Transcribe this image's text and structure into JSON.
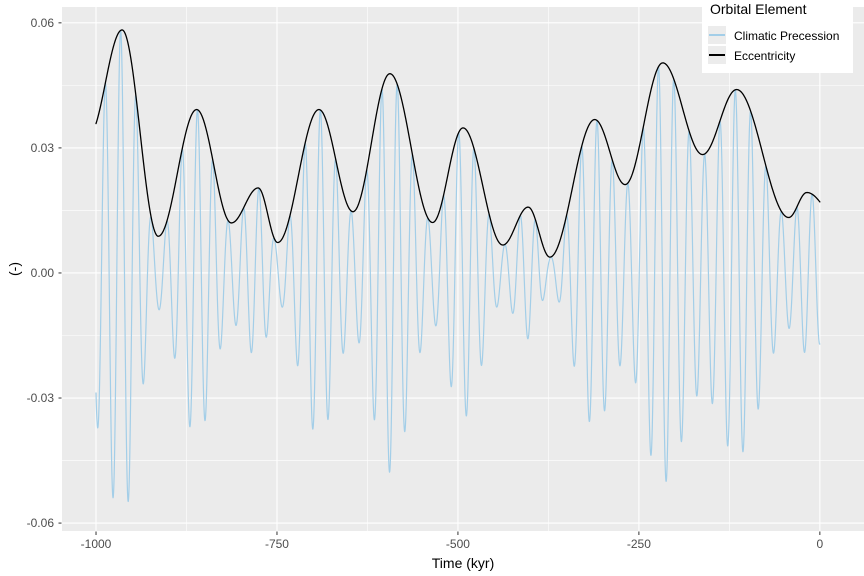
{
  "chart_data": {
    "type": "line",
    "title": "",
    "xlabel": "Time (kyr)",
    "ylabel": "(-)",
    "x_ticks": [
      -1000,
      -750,
      -500,
      -250,
      0
    ],
    "x_tick_labels": [
      "-1000",
      "-750",
      "-500",
      "-250",
      "0"
    ],
    "x_minor_ticks": [
      -875,
      -625,
      -375,
      -125
    ],
    "y_ticks": [
      -0.06,
      -0.03,
      0,
      0.03,
      0.06
    ],
    "y_tick_labels": [
      "-0.06",
      "-0.03",
      "0.00",
      "0.03",
      "0.06"
    ],
    "y_minor_ticks": [
      -0.045,
      -0.015,
      0.015,
      0.045
    ],
    "x_range": [
      -1047,
      61
    ],
    "y_range": [
      -0.0619,
      0.0638
    ],
    "data_x_span": [
      -1000,
      0
    ],
    "grid": true,
    "panel_color": "#EBEBEB",
    "grid_color": "#FFFFFF",
    "tick_mark_color": "#333333",
    "tick_label_color": "#4D4D4D",
    "legend": {
      "title": "Orbital Element",
      "position": "top-right-inside",
      "background": "#FFFFFF",
      "key_fill": "#ECECEC"
    },
    "series": [
      {
        "name": "Climatic Precession",
        "color": "#A3CEE8",
        "type": "amplitude-modulated-carrier",
        "carrier_period_kyr": 21.23,
        "carrier_peak_at_kyr": -966,
        "envelope": "Eccentricity",
        "value_at_t0": -0.017,
        "value_at_t_minus_1000": -0.032
      },
      {
        "name": "Eccentricity",
        "color": "#000000",
        "type": "envelope",
        "interpolation": "half-cosine between extrema",
        "extrema_points": [
          [
            -1010,
            0.033
          ],
          [
            -964,
            0.0583
          ],
          [
            -914,
            0.0088
          ],
          [
            -861,
            0.0392
          ],
          [
            -813,
            0.012
          ],
          [
            -776,
            0.0204
          ],
          [
            -749,
            0.0073
          ],
          [
            -692,
            0.0392
          ],
          [
            -645,
            0.0147
          ],
          [
            -594,
            0.0478
          ],
          [
            -535,
            0.0121
          ],
          [
            -493,
            0.0348
          ],
          [
            -438,
            0.0067
          ],
          [
            -403,
            0.0158
          ],
          [
            -373,
            0.0038
          ],
          [
            -311,
            0.0368
          ],
          [
            -269,
            0.0212
          ],
          [
            -217,
            0.0504
          ],
          [
            -162,
            0.0284
          ],
          [
            -115,
            0.044
          ],
          [
            -43,
            0.0133
          ],
          [
            -18,
            0.0193
          ],
          [
            30,
            0.012
          ]
        ]
      }
    ]
  }
}
